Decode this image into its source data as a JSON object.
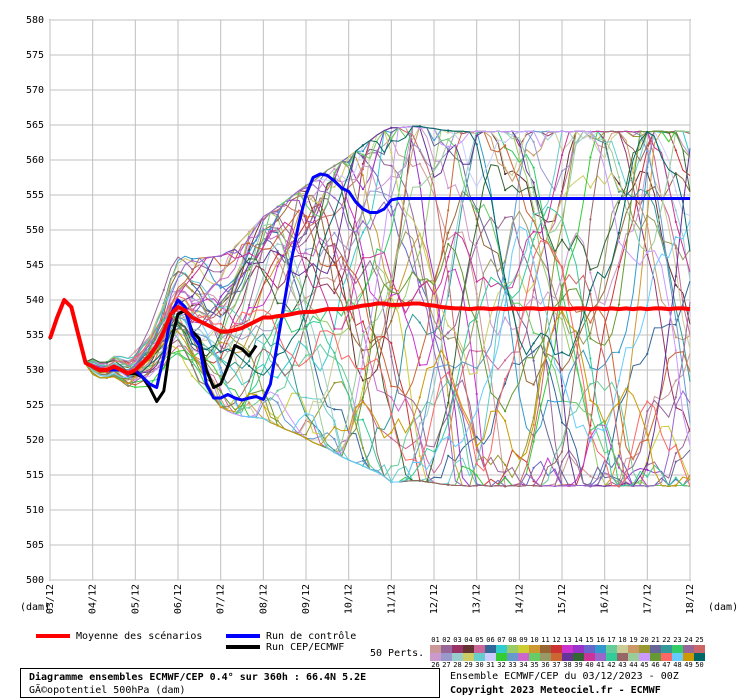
{
  "chart_data": {
    "type": "line",
    "unit_label": "(dam)",
    "ylim": [
      500,
      580
    ],
    "y_ticks": [
      500,
      505,
      510,
      515,
      520,
      525,
      530,
      535,
      540,
      545,
      550,
      555,
      560,
      565,
      570,
      575,
      580
    ],
    "x_ticks": [
      "03/12",
      "04/12",
      "05/12",
      "06/12",
      "07/12",
      "08/12",
      "09/12",
      "10/12",
      "11/12",
      "12/12",
      "13/12",
      "14/12",
      "15/12",
      "16/12",
      "17/12",
      "18/12"
    ],
    "x_range": [
      0,
      90
    ],
    "grid": true,
    "series": [
      {
        "name": "Moyenne des scénarios",
        "color": "#ff0000",
        "width": 4,
        "values": [
          534.5,
          537.5,
          540,
          539,
          535,
          531,
          530.5,
          530,
          530,
          530.5,
          530,
          529.5,
          530,
          531,
          532,
          533.5,
          535.5,
          538,
          539,
          538.5,
          537.5,
          537,
          536.5,
          536,
          535.5,
          535.5,
          535.7,
          536,
          536.5,
          537,
          537.5,
          537.5,
          537.7,
          537.8,
          538,
          538.2,
          538.3,
          538.3,
          538.5,
          538.7,
          538.7,
          538.7,
          538.8,
          539,
          539.2,
          539.3,
          539.5,
          539.5,
          539.3,
          539.3,
          539.4,
          539.5,
          539.5,
          539.3,
          539.2,
          539,
          538.9,
          538.8,
          538.8,
          538.7,
          538.8,
          538.8,
          538.7,
          538.8,
          538.7,
          538.8,
          538.7,
          538.8,
          538.8,
          538.7,
          538.8,
          538.7,
          538.8,
          538.7,
          538.8,
          538.8,
          538.7,
          538.8,
          538.7,
          538.8,
          538.7,
          538.8,
          538.7,
          538.8,
          538.7,
          538.8,
          538.8,
          538.7,
          538.8,
          538.8,
          538.7
        ]
      },
      {
        "name": "Run de contrôle",
        "color": "#0000ff",
        "width": 3,
        "values": [
          534.5,
          537.5,
          540,
          539,
          535,
          531,
          530.5,
          530,
          530,
          530,
          530,
          529.5,
          530,
          529,
          528,
          527.5,
          532,
          538,
          540,
          539,
          535,
          533.5,
          528,
          526,
          526,
          526.5,
          526,
          525.7,
          526,
          526.2,
          525.8,
          528,
          534,
          540,
          546,
          551,
          555,
          557.5,
          558,
          557.8,
          557,
          556,
          555.5,
          554,
          553,
          552.5,
          552.5,
          553,
          554.3,
          554.5,
          554.5,
          554.5,
          554.5,
          554.5,
          554.5,
          554.5,
          554.5,
          554.5,
          554.5,
          554.5,
          554.5,
          554.5,
          554.5,
          554.5,
          554.5,
          554.5,
          554.5,
          554.5,
          554.5,
          554.5,
          554.5,
          554.5,
          554.5,
          554.5,
          554.5,
          554.5,
          554.5,
          554.5,
          554.5,
          554.5,
          554.5,
          554.5,
          554.5,
          554.5,
          554.5,
          554.5,
          554.5,
          554.5,
          554.5,
          554.5,
          554.5
        ]
      },
      {
        "name": "Run CEP/ECMWF",
        "color": "#000000",
        "width": 3,
        "values": [
          534.5,
          537.5,
          540,
          539,
          535,
          531,
          530.5,
          530,
          530,
          530.5,
          530,
          529.5,
          529.5,
          529,
          527.5,
          525.5,
          527,
          534,
          538,
          538.5,
          535.5,
          534.5,
          530,
          527.5,
          528,
          530.5,
          533.5,
          533,
          532,
          533.5
        ]
      }
    ],
    "perturbations": {
      "label": "50 Perts.",
      "numbers_row1": [
        "01",
        "02",
        "03",
        "04",
        "05",
        "06",
        "07",
        "08",
        "09",
        "10",
        "11",
        "12",
        "13",
        "14",
        "15",
        "16",
        "17",
        "18",
        "19",
        "20",
        "21",
        "22",
        "23",
        "24",
        "25"
      ],
      "numbers_row2": [
        "26",
        "27",
        "28",
        "29",
        "30",
        "31",
        "32",
        "33",
        "34",
        "35",
        "36",
        "37",
        "38",
        "39",
        "40",
        "41",
        "42",
        "43",
        "44",
        "45",
        "46",
        "47",
        "48",
        "49",
        "50"
      ],
      "colors": [
        "#cc9999",
        "#996699",
        "#993366",
        "#663333",
        "#cc6699",
        "#336699",
        "#33cccc",
        "#99cc66",
        "#cccc33",
        "#cc9933",
        "#996633",
        "#cc3333",
        "#cc33cc",
        "#9933cc",
        "#6666cc",
        "#3399cc",
        "#66cc99",
        "#cccc99",
        "#cc9966",
        "#999933",
        "#666699",
        "#339999",
        "#33cc66",
        "#996699",
        "#cc6666",
        "#cc99cc",
        "#9999cc",
        "#99cccc",
        "#cccc66",
        "#66cccc",
        "#ccccff",
        "#33cc33",
        "#6699cc",
        "#cc66cc",
        "#66cc66",
        "#999966",
        "#cc6633",
        "#663399",
        "#336633",
        "#cc3399",
        "#9966cc",
        "#33cc99",
        "#996666",
        "#99cc99",
        "#cc99ff",
        "#669933",
        "#ff6666",
        "#66ccff",
        "#cc9900",
        "#006666"
      ]
    }
  },
  "legend": {
    "mean": "Moyenne des scénarios",
    "control": "Run de contrôle",
    "run": "Run CEP/ECMWF",
    "perts": "50 Perts."
  },
  "footer": {
    "title": "Diagramme ensembles ECMWF/CEP 0.4° sur 360h : 66.4N 5.2E",
    "subtitle": "GÃ©opotentiel 500hPa (dam)",
    "ensemble": "Ensemble ECMWF/CEP du 03/12/2023 - 00Z",
    "copyright": "Copyright 2023 Meteociel.fr - ECMWF"
  }
}
